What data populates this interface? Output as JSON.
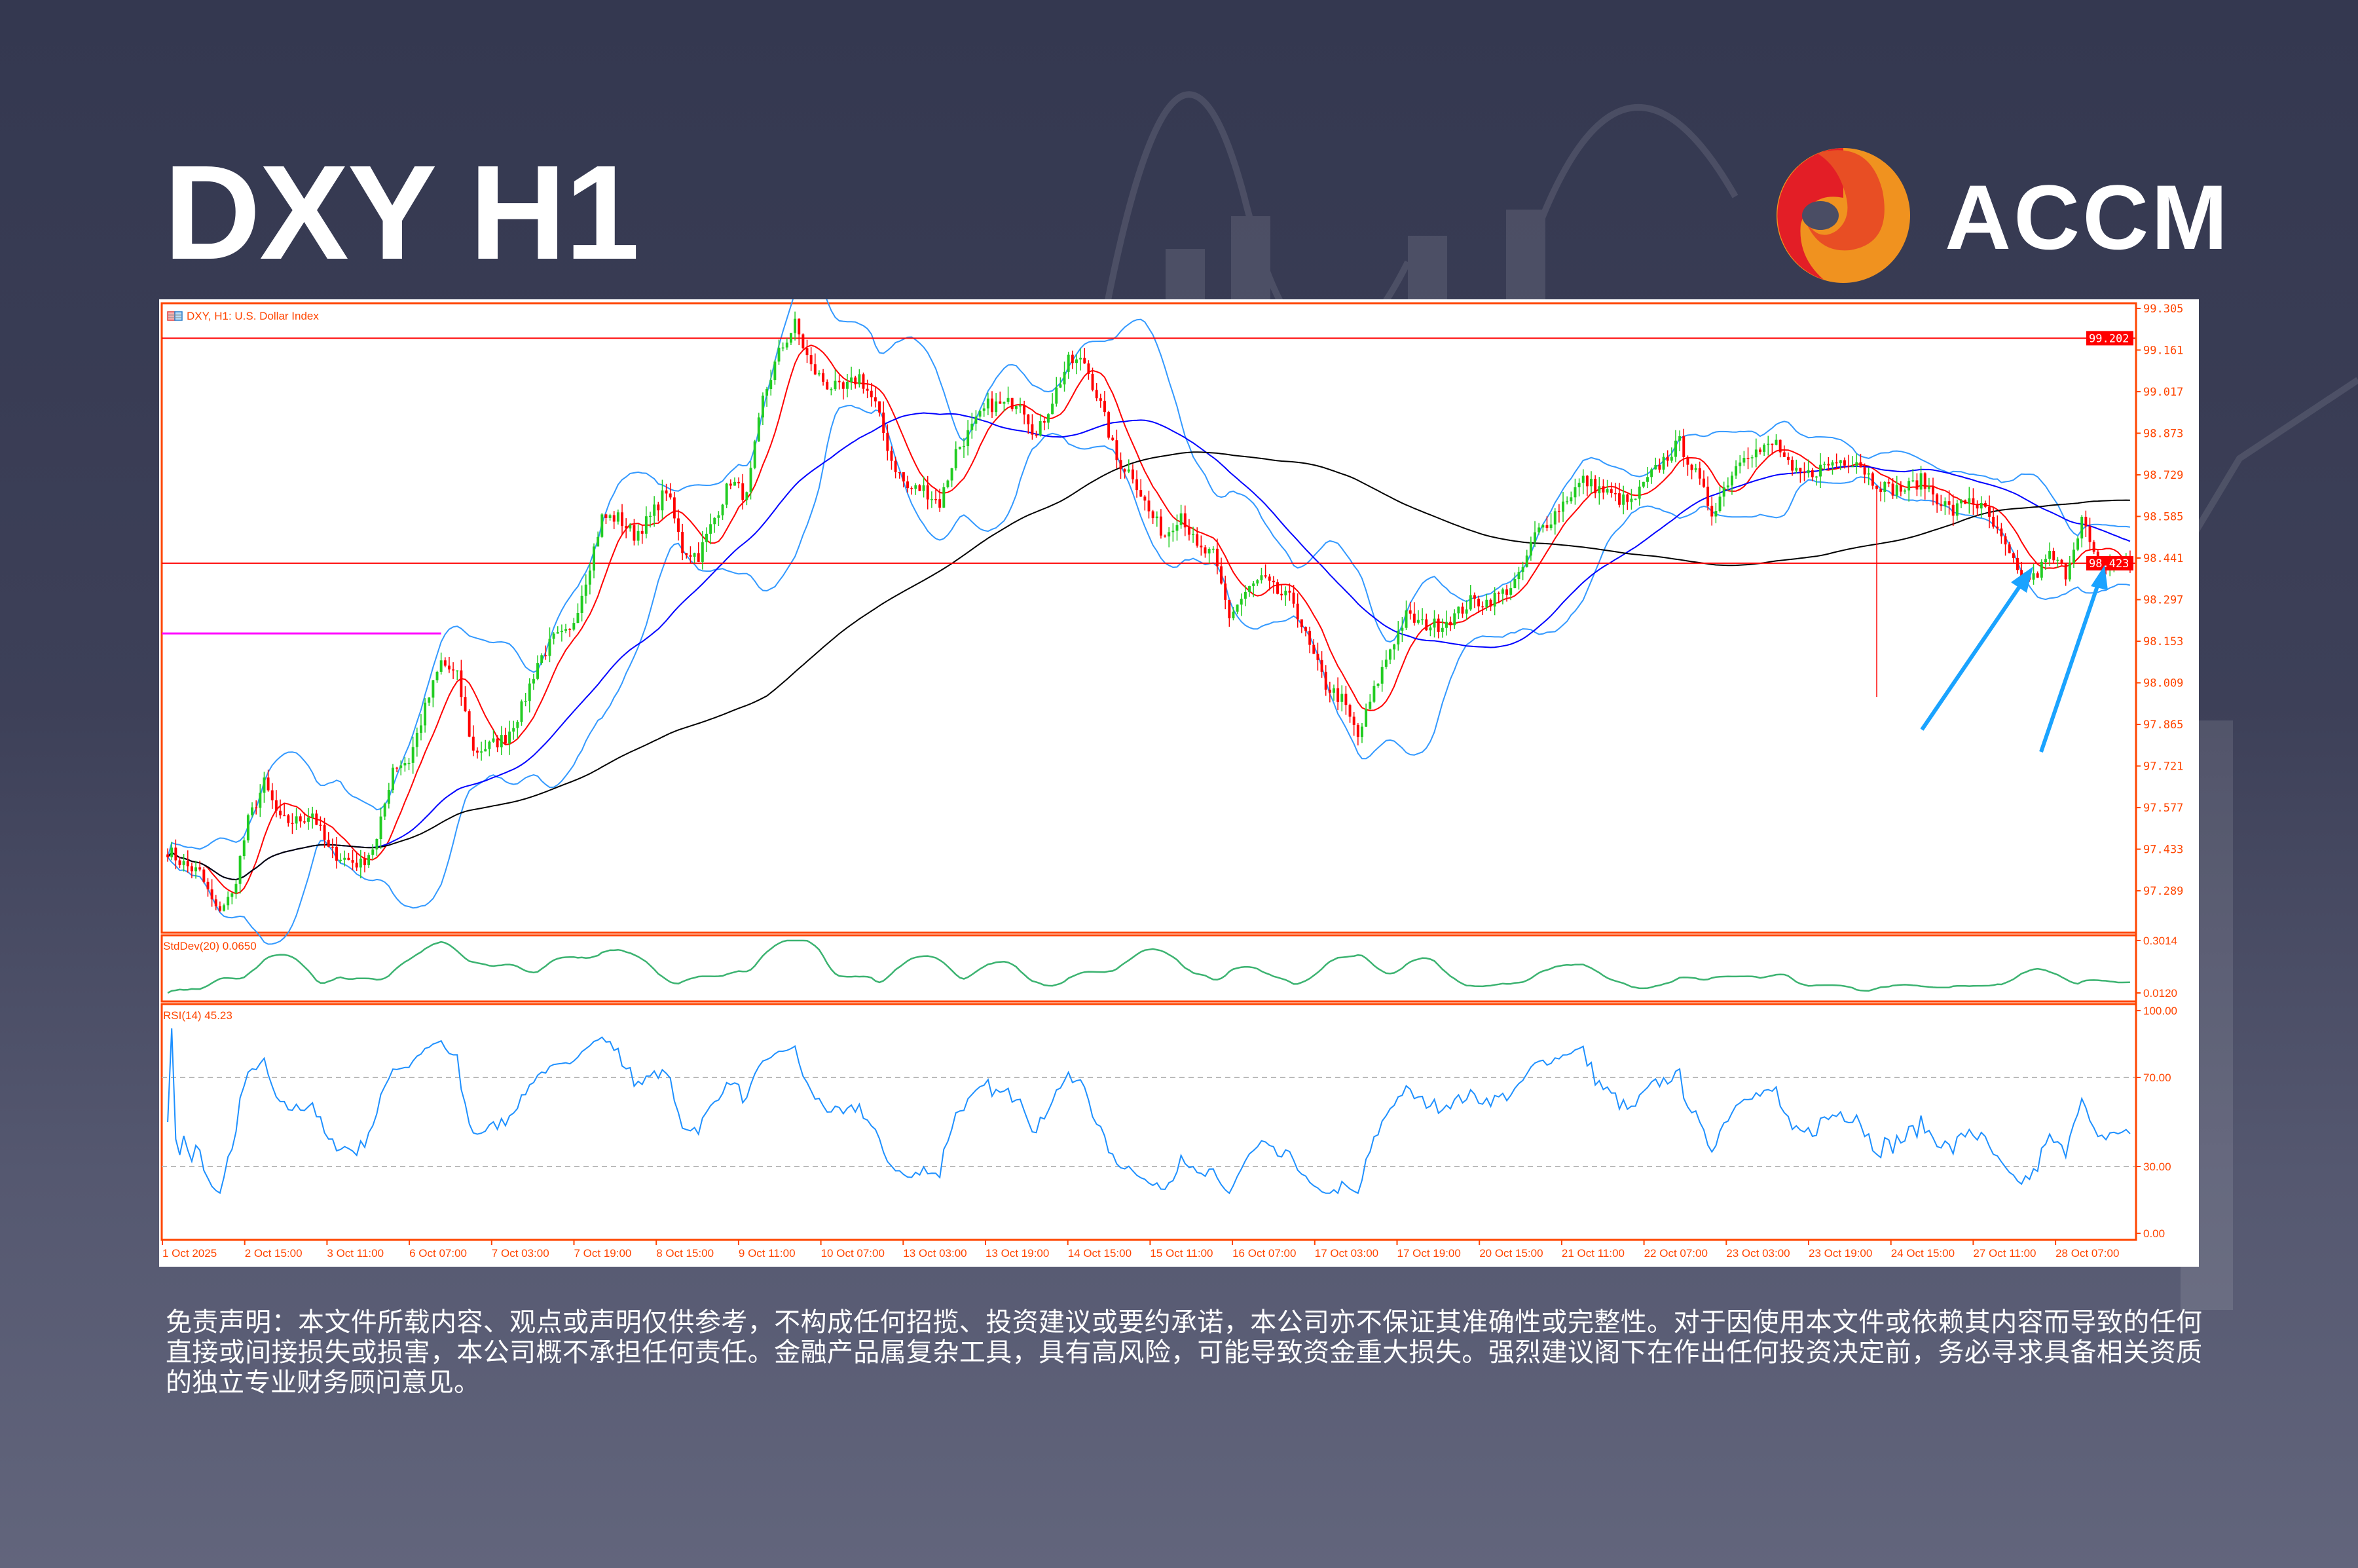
{
  "header": {
    "title": "DXY H1"
  },
  "brand": {
    "name": "ACCM",
    "colors": {
      "red": "#e31e26",
      "orange_red": "#e84e24",
      "orange": "#f0921f"
    }
  },
  "chart": {
    "legend": "DXY, H1:  U.S. Dollar Index",
    "stddev_label": "StdDev(20) 0.0650",
    "rsi_label": "RSI(14) 45.23",
    "colors": {
      "axis": "#ff4500",
      "bull": "#22cc22",
      "bear": "#ff0000",
      "fast_ma": "#ff0000",
      "mid_ma": "#0000ff",
      "slow_ma": "#000000",
      "bands": "#3399ff",
      "stddev": "#3cb371",
      "rsi": "#1e90ff",
      "level_line": "#ff00ff",
      "arrows": "#1aa3ff"
    }
  },
  "chart_data": {
    "type": "candlestick",
    "timeframe": "H1",
    "symbol": "DXY",
    "price_ticks": [
      "99.305",
      "99.161",
      "99.017",
      "98.873",
      "98.729",
      "98.585",
      "98.441",
      "98.297",
      "98.153",
      "98.009",
      "97.865",
      "97.721",
      "97.577",
      "97.433",
      "97.289"
    ],
    "ylim": [
      97.144,
      99.323
    ],
    "price_lines": [
      {
        "label": "99.202",
        "value": 99.202
      },
      {
        "label": "98.423",
        "value": 98.423
      }
    ],
    "magenta_level": 98.18,
    "notable_wick_low": 97.96,
    "time_labels": [
      "1 Oct 2025",
      "2 Oct 15:00",
      "3 Oct 11:00",
      "6 Oct 07:00",
      "7 Oct 03:00",
      "7 Oct 19:00",
      "8 Oct 15:00",
      "9 Oct 11:00",
      "10 Oct 07:00",
      "13 Oct 03:00",
      "13 Oct 19:00",
      "14 Oct 15:00",
      "15 Oct 11:00",
      "16 Oct 07:00",
      "17 Oct 03:00",
      "17 Oct 19:00",
      "20 Oct 15:00",
      "21 Oct 11:00",
      "22 Oct 07:00",
      "23 Oct 03:00",
      "23 Oct 19:00",
      "24 Oct 15:00",
      "27 Oct 11:00",
      "28 Oct 07:00"
    ],
    "close_path": [
      97.43,
      97.38,
      97.35,
      97.22,
      97.27,
      97.53,
      97.66,
      97.53,
      97.53,
      97.56,
      97.43,
      97.4,
      97.38,
      97.46,
      97.72,
      97.74,
      97.92,
      98.08,
      98.03,
      97.77,
      97.79,
      97.82,
      97.92,
      98.08,
      98.16,
      98.18,
      98.37,
      98.58,
      98.58,
      98.52,
      98.58,
      98.68,
      98.47,
      98.45,
      98.58,
      98.71,
      98.65,
      98.99,
      99.15,
      99.25,
      99.1,
      99.04,
      99.02,
      99.07,
      98.97,
      98.78,
      98.68,
      98.68,
      98.63,
      98.81,
      98.89,
      98.97,
      98.97,
      98.99,
      98.86,
      98.99,
      99.12,
      99.12,
      98.97,
      98.78,
      98.73,
      98.6,
      98.52,
      98.6,
      98.47,
      98.45,
      98.24,
      98.32,
      98.37,
      98.32,
      98.29,
      98.13,
      98.0,
      97.95,
      97.82,
      97.98,
      98.13,
      98.24,
      98.21,
      98.21,
      98.24,
      98.29,
      98.29,
      98.32,
      98.37,
      98.52,
      98.58,
      98.65,
      98.71,
      98.68,
      98.65,
      98.63,
      98.71,
      98.78,
      98.84,
      98.73,
      98.6,
      98.71,
      98.81,
      98.81,
      98.84,
      98.73,
      98.73,
      98.76,
      98.78,
      98.78,
      98.71,
      98.68,
      98.68,
      98.71,
      98.65,
      98.6,
      98.65,
      98.6,
      98.5,
      98.39,
      98.37,
      98.45,
      98.39,
      98.58,
      98.4,
      98.43,
      98.42
    ],
    "stddev": {
      "period": 20,
      "current": 0.065,
      "ticks": [
        "0.3014",
        "0.0120"
      ],
      "ylim": [
        0.012,
        0.3014
      ]
    },
    "rsi": {
      "period": 14,
      "current": 45.23,
      "ticks": [
        "100.00",
        "70.00",
        "30.00",
        "0.00"
      ],
      "levels": [
        70,
        30
      ],
      "ylim": [
        0,
        100
      ]
    },
    "overlays": [
      "moving average fast (red)",
      "moving average medium (blue)",
      "moving average slow (black)",
      "Bollinger Bands (light blue)"
    ]
  },
  "disclaimer": "免责声明：本文件所载内容、观点或声明仅供参考，不构成任何招揽、投资建议或要约承诺，本公司亦不保证其准确性或完整性。对于因使用本文件或依赖其内容而导致的任何直接或间接损失或损害，本公司概不承担任何责任。金融产品属复杂工具，具有高风险，可能导致资金重大损失。强烈建议阁下在作出任何投资决定前，务必寻求具备相关资质的独立专业财务顾问意见。"
}
